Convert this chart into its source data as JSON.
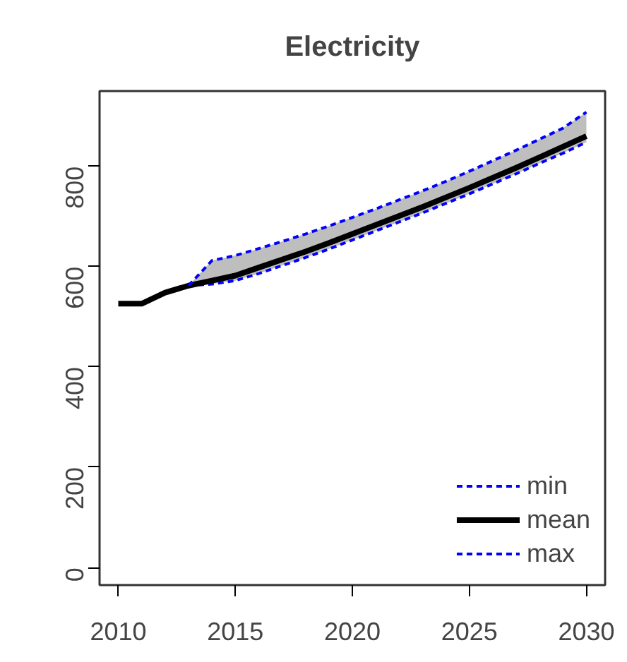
{
  "chart_data": {
    "type": "line",
    "title": "Electricity",
    "x": [
      2010,
      2011,
      2012,
      2013,
      2014,
      2015,
      2016,
      2017,
      2018,
      2019,
      2020,
      2021,
      2022,
      2023,
      2024,
      2025,
      2026,
      2027,
      2028,
      2029,
      2030
    ],
    "series": [
      {
        "name": "min",
        "color": "#0000ff",
        "line_style": "dashed",
        "values": [
          null,
          null,
          null,
          562,
          565,
          572,
          586,
          602,
          618,
          635,
          653,
          671,
          689,
          707,
          726,
          745,
          765,
          785,
          806,
          826,
          848
        ]
      },
      {
        "name": "mean",
        "color": "#000000",
        "line_style": "solid",
        "values": [
          526,
          526,
          548,
          562,
          572,
          582,
          598,
          614,
          630,
          647,
          665,
          683,
          701,
          719,
          738,
          757,
          777,
          797,
          818,
          839,
          860
        ],
        "lower": [
          null,
          null,
          null,
          562,
          565,
          572,
          586,
          602,
          618,
          635,
          653,
          671,
          689,
          707,
          726,
          745,
          765,
          785,
          806,
          826,
          848
        ],
        "upper": [
          null,
          null,
          null,
          562,
          612,
          622,
          636,
          650,
          665,
          681,
          698,
          715,
          733,
          751,
          770,
          790,
          811,
          832,
          854,
          876,
          908
        ]
      },
      {
        "name": "max",
        "color": "#0000ff",
        "line_style": "dashed",
        "values": [
          null,
          null,
          null,
          562,
          612,
          622,
          636,
          650,
          665,
          681,
          698,
          715,
          733,
          751,
          770,
          790,
          811,
          832,
          854,
          876,
          908
        ]
      }
    ],
    "xlim": [
      2009.2,
      2030.8
    ],
    "ylim": [
      -35,
      950
    ],
    "xticks": [
      2010,
      2015,
      2020,
      2025,
      2030
    ],
    "yticks": [
      0,
      200,
      400,
      600,
      800
    ],
    "grid": false,
    "legend": "bottom right",
    "marker": "none"
  }
}
